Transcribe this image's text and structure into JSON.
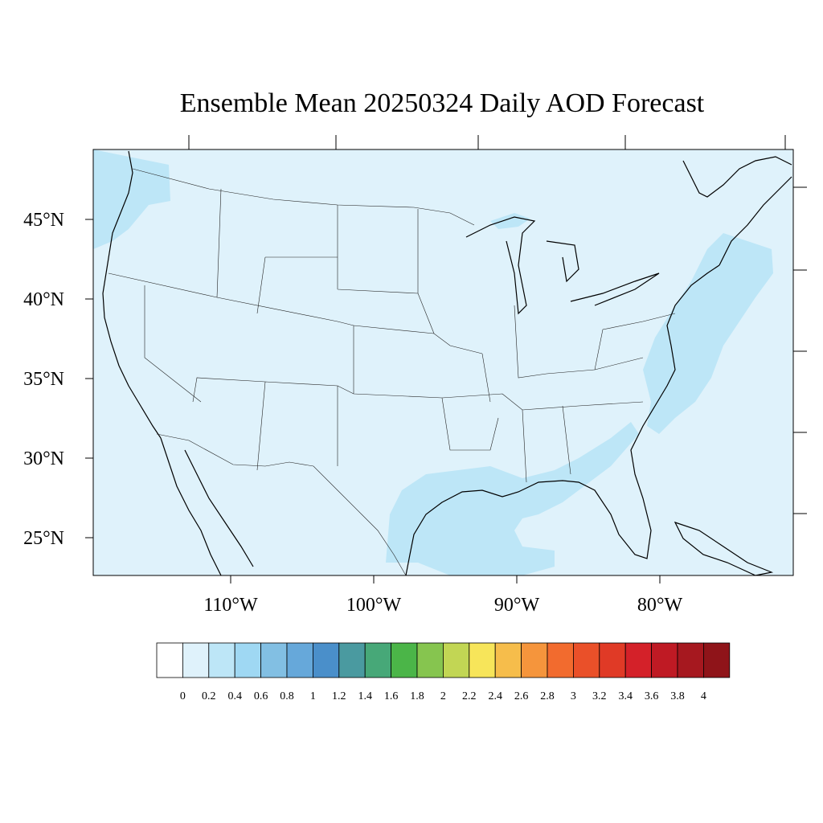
{
  "title": "Ensemble Mean 20250324 Daily AOD Forecast",
  "map": {
    "background_color": "#dff2fb",
    "enhanced_color": "#bde6f7",
    "lat_labels": [
      "45°N",
      "40°N",
      "35°N",
      "30°N",
      "25°N"
    ],
    "lon_labels": [
      "110°W",
      "100°W",
      "90°W",
      "80°W"
    ]
  },
  "colorbar": {
    "levels": [
      "0",
      "0.2",
      "0.4",
      "0.6",
      "0.8",
      "1",
      "1.2",
      "1.4",
      "1.6",
      "1.8",
      "2",
      "2.2",
      "2.4",
      "2.6",
      "2.8",
      "3",
      "3.2",
      "3.4",
      "3.6",
      "3.8",
      "4"
    ],
    "colors": [
      "#ffffff",
      "#dff2fb",
      "#bde6f7",
      "#9fd8f3",
      "#82bfe3",
      "#66a8da",
      "#4a8fca",
      "#4a9aa0",
      "#47a878",
      "#4bb548",
      "#86c54f",
      "#c2d654",
      "#f7e55a",
      "#f6bd4b",
      "#f5953c",
      "#f26b2e",
      "#ea5029",
      "#e03a26",
      "#d42129",
      "#bf1a24",
      "#a6181f",
      "#8f1419"
    ]
  }
}
